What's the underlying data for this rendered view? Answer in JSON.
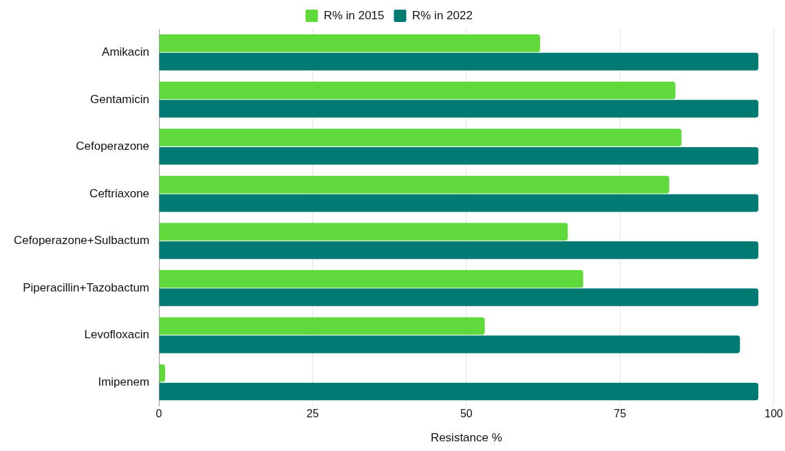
{
  "chart_data": {
    "type": "bar",
    "orientation": "horizontal",
    "xlabel": "Resistance %",
    "categories": [
      "Amikacin",
      "Gentamicin",
      "Cefoperazone",
      "Ceftriaxone",
      "Cefoperazone+Sulbactum",
      "Piperacillin+Tazobactum",
      "Levofloxacin",
      "Imipenem"
    ],
    "series": [
      {
        "name": "R% in 2015",
        "color": "#5fd93c",
        "values": [
          62,
          84,
          85,
          83,
          66.5,
          69,
          53,
          1
        ]
      },
      {
        "name": "R% in 2022",
        "color": "#007a72",
        "values": [
          97.5,
          97.5,
          97.5,
          97.5,
          97.5,
          97.5,
          94.5,
          97.5
        ]
      }
    ],
    "xlim": [
      0,
      100
    ],
    "xticks": [
      0,
      25,
      50,
      75,
      100
    ],
    "grid": "x",
    "legend": "top"
  }
}
